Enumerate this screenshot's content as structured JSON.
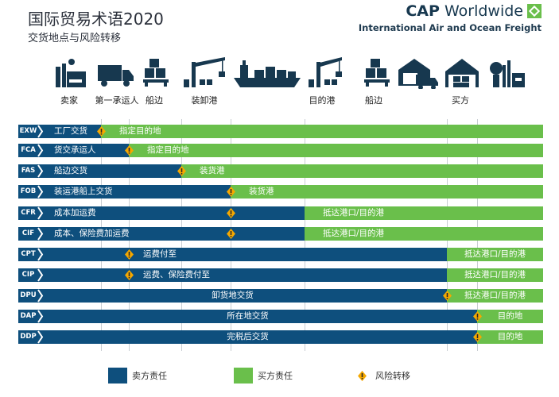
{
  "header": {
    "title": "国际贸易术语2020",
    "subtitle": "交货地点与风险转移"
  },
  "logo": {
    "name_bold": "CAP",
    "name_rest": "Worldwide",
    "tagline": "International Air and Ocean Freight"
  },
  "colors": {
    "seller": "#0e4f7d",
    "buyer": "#6abf4b",
    "risk": "#f5a800"
  },
  "stages": [
    {
      "label": "卖家",
      "icon": "factory-icon"
    },
    {
      "label": "第一承运人",
      "icon": "truck-icon"
    },
    {
      "label": "船边",
      "icon": "pallet-icon"
    },
    {
      "label": "装卸港",
      "icon": "crane-icon"
    },
    {
      "label": "",
      "icon": "ship-icon"
    },
    {
      "label": "目的港",
      "icon": "crane-icon"
    },
    {
      "label": "船边",
      "icon": "pallet-icon"
    },
    {
      "label": "",
      "icon": "warehouse-truck-icon"
    },
    {
      "label": "买方",
      "icon": "warehouse-icon"
    },
    {
      "label": "",
      "icon": "plant-icon"
    }
  ],
  "terms": [
    {
      "code": "EXW",
      "seller_label": "工厂交货",
      "buyer_label": "指定目的地",
      "seller_until": 0,
      "risk_at": 0
    },
    {
      "code": "FCA",
      "seller_label": "货交承运人",
      "buyer_label": "指定目的地",
      "seller_until": 1,
      "risk_at": 1
    },
    {
      "code": "FAS",
      "seller_label": "船边交货",
      "buyer_label": "装货港",
      "seller_until": 2,
      "risk_at": 2
    },
    {
      "code": "FOB",
      "seller_label": "装运港船上交货",
      "buyer_label": "装货港",
      "seller_until": 3,
      "risk_at": 3
    },
    {
      "code": "CFR",
      "seller_label": "成本加运费",
      "buyer_label": "抵达港口/目的港",
      "seller_until": 4,
      "risk_at": 3
    },
    {
      "code": "CIF",
      "seller_label": "成本、保险费加运费",
      "buyer_label": "抵达港口/目的港",
      "seller_until": 4,
      "risk_at": 3
    },
    {
      "code": "CPT",
      "seller_label": "运费付至",
      "buyer_label": "抵达港口/目的港",
      "seller_until": 5,
      "risk_at": 1
    },
    {
      "code": "CIP",
      "seller_label": "运费、保险费付至",
      "buyer_label": "抵达港口/目的港",
      "seller_until": 5,
      "risk_at": 1
    },
    {
      "code": "DPU",
      "seller_label": "卸货地交货",
      "buyer_label": "抵达港口/目的港",
      "seller_until": 5,
      "risk_at": 5
    },
    {
      "code": "DAP",
      "seller_label": "所在地交货",
      "buyer_label": "目的地",
      "seller_until": 6,
      "risk_at": 6
    },
    {
      "code": "DDP",
      "seller_label": "完税后交货",
      "buyer_label": "目的地",
      "seller_until": 6,
      "risk_at": 6
    }
  ],
  "legend": {
    "seller": "卖方责任",
    "buyer": "买方责任",
    "risk": "风险转移"
  }
}
